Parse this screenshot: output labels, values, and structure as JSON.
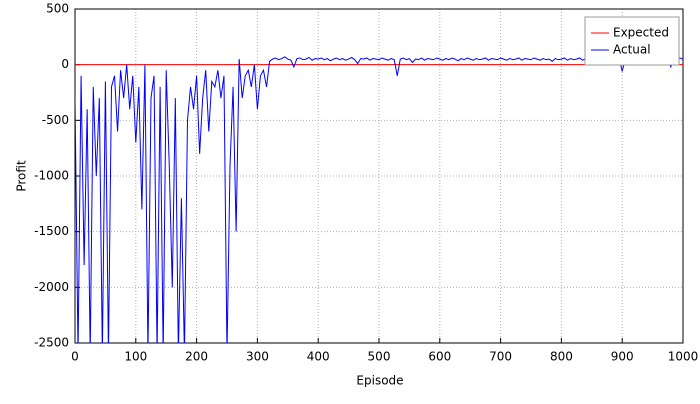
{
  "chart_data": {
    "type": "line",
    "xlabel": "Episode",
    "ylabel": "Profit",
    "xlim": [
      0,
      1000
    ],
    "ylim": [
      -2500,
      500
    ],
    "xticks": [
      0,
      100,
      200,
      300,
      400,
      500,
      600,
      700,
      800,
      900,
      1000
    ],
    "yticks": [
      -2500,
      -2000,
      -1500,
      -1000,
      -500,
      0,
      500
    ],
    "grid": true,
    "legend": "upper right",
    "series": [
      {
        "name": "Expected",
        "color": "#ff0000",
        "x": [
          0,
          1000
        ],
        "values": [
          0,
          0
        ]
      },
      {
        "name": "Actual",
        "color": "#0000ff",
        "x": [
          0,
          5,
          10,
          15,
          20,
          25,
          30,
          35,
          40,
          45,
          50,
          55,
          60,
          65,
          70,
          75,
          80,
          85,
          90,
          95,
          100,
          105,
          110,
          115,
          120,
          125,
          130,
          135,
          140,
          145,
          150,
          155,
          160,
          165,
          170,
          175,
          180,
          185,
          190,
          195,
          200,
          205,
          210,
          215,
          220,
          225,
          230,
          235,
          240,
          245,
          250,
          255,
          260,
          265,
          270,
          275,
          280,
          285,
          290,
          295,
          300,
          305,
          310,
          315,
          320,
          325,
          330,
          335,
          340,
          345,
          350,
          355,
          360,
          365,
          370,
          375,
          380,
          385,
          390,
          395,
          400,
          405,
          410,
          415,
          420,
          425,
          430,
          435,
          440,
          445,
          450,
          455,
          460,
          465,
          470,
          475,
          480,
          485,
          490,
          495,
          500,
          505,
          510,
          515,
          520,
          525,
          530,
          535,
          540,
          545,
          550,
          555,
          560,
          565,
          570,
          575,
          580,
          585,
          590,
          595,
          600,
          605,
          610,
          615,
          620,
          625,
          630,
          635,
          640,
          645,
          650,
          655,
          660,
          665,
          670,
          675,
          680,
          685,
          690,
          695,
          700,
          705,
          710,
          715,
          720,
          725,
          730,
          735,
          740,
          745,
          750,
          755,
          760,
          765,
          770,
          775,
          780,
          785,
          790,
          795,
          800,
          805,
          810,
          815,
          820,
          825,
          830,
          835,
          840,
          845,
          850,
          855,
          860,
          865,
          870,
          875,
          880,
          885,
          890,
          895,
          900,
          905,
          910,
          915,
          920,
          925,
          930,
          935,
          940,
          945,
          950,
          955,
          960,
          965,
          970,
          975,
          980,
          985,
          990,
          995,
          1000
        ],
        "values": [
          -300,
          -2600,
          -100,
          -1800,
          -400,
          -2600,
          -200,
          -1000,
          -300,
          -2600,
          -150,
          -2600,
          -200,
          -100,
          -600,
          -50,
          -300,
          0,
          -400,
          -100,
          -700,
          -200,
          -1300,
          0,
          -2600,
          -300,
          -100,
          -2600,
          -200,
          -2600,
          -50,
          -900,
          -2000,
          -300,
          -2600,
          -1200,
          -2600,
          -500,
          -200,
          -400,
          -100,
          -800,
          -300,
          -50,
          -600,
          -150,
          -200,
          -50,
          -300,
          -100,
          -2600,
          -900,
          -200,
          -1500,
          50,
          -300,
          -100,
          -50,
          -200,
          0,
          -400,
          -100,
          -50,
          -200,
          30,
          50,
          60,
          45,
          55,
          70,
          50,
          40,
          -20,
          55,
          60,
          45,
          50,
          65,
          40,
          55,
          50,
          60,
          45,
          55,
          35,
          50,
          60,
          45,
          55,
          40,
          50,
          65,
          45,
          10,
          55,
          50,
          60,
          40,
          55,
          50,
          45,
          60,
          50,
          40,
          55,
          45,
          -100,
          50,
          60,
          45,
          55,
          20,
          50,
          45,
          60,
          40,
          55,
          50,
          45,
          60,
          50,
          40,
          55,
          45,
          60,
          50,
          35,
          55,
          45,
          60,
          50,
          40,
          55,
          45,
          50,
          60,
          40,
          55,
          50,
          45,
          60,
          50,
          40,
          55,
          45,
          50,
          60,
          40,
          55,
          50,
          45,
          60,
          50,
          40,
          55,
          45,
          50,
          30,
          55,
          45,
          50,
          60,
          40,
          55,
          45,
          50,
          60,
          40,
          55,
          50,
          20,
          55,
          45,
          50,
          60,
          40,
          55,
          45,
          50,
          60,
          -60,
          50,
          45,
          55,
          40,
          60,
          50,
          45,
          55,
          40,
          50,
          60,
          45,
          55,
          40,
          50,
          -20,
          55,
          45,
          60,
          50
        ]
      }
    ]
  }
}
